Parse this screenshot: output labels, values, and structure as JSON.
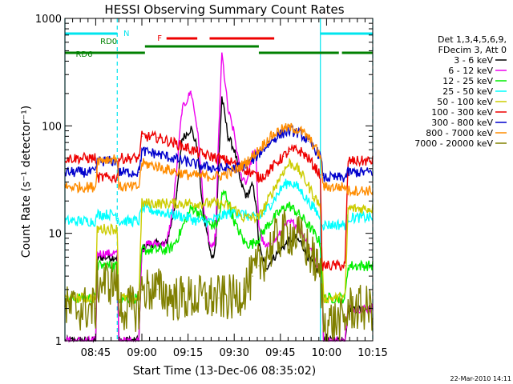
{
  "chart_data": {
    "type": "line",
    "title": "HESSI Observing Summary Count Rates",
    "xlabel": "Start Time (13-Dec-06 08:35:02)",
    "ylabel": "Count Rate (s⁻¹ detector⁻¹)",
    "x_unit": "minutes after 08:35:02",
    "xlim": [
      0,
      100
    ],
    "ylim": [
      1,
      1000
    ],
    "yscale": "log",
    "x_ticks": [
      {
        "label": "08:45",
        "t": 10
      },
      {
        "label": "09:00",
        "t": 25
      },
      {
        "label": "09:15",
        "t": 40
      },
      {
        "label": "09:30",
        "t": 55
      },
      {
        "label": "09:45",
        "t": 70
      },
      {
        "label": "10:00",
        "t": 85
      },
      {
        "label": "10:15",
        "t": 100
      }
    ],
    "y_ticks": [
      {
        "label": "1",
        "v": 1
      },
      {
        "label": "10",
        "v": 10
      },
      {
        "label": "100",
        "v": 100
      },
      {
        "label": "1000",
        "v": 1000
      }
    ],
    "legend": {
      "position": "right",
      "header": [
        "Det 1,3,4,5,6,9,",
        "FDecim 3, Att 0"
      ]
    },
    "flags": [
      {
        "name": "N",
        "color": "#00e5ee",
        "segments": [
          [
            0,
            17
          ],
          [
            83,
            100
          ]
        ]
      },
      {
        "name": "F",
        "color": "#ee0000",
        "segments": [
          [
            33,
            43
          ],
          [
            47,
            68
          ]
        ]
      },
      {
        "name": "RD0",
        "color": "#008000",
        "segments": [
          [
            26,
            63
          ]
        ]
      },
      {
        "name": "RD6",
        "color": "#008000",
        "segments": [
          [
            0,
            26
          ],
          [
            63,
            89
          ],
          [
            90,
            100
          ]
        ]
      }
    ],
    "vertical_lines": [
      {
        "t": 0,
        "style": "solid",
        "color": "#00e5ee"
      },
      {
        "t": 17,
        "style": "dashed",
        "color": "#00e5ee"
      },
      {
        "t": 83,
        "style": "solid",
        "color": "#00e5ee"
      },
      {
        "t": 100,
        "style": "dashed",
        "color": "#00e5ee"
      }
    ],
    "timestamp": "22-Mar-2010 14:11",
    "series": [
      {
        "name": "3 - 6 keV",
        "color": "#000000",
        "t": [
          0,
          10,
          10.5,
          16,
          17,
          17.5,
          24,
          25,
          27,
          30,
          33,
          35,
          36.5,
          38,
          41,
          43,
          44,
          45,
          46,
          46.5,
          47,
          48,
          49,
          50,
          51,
          53,
          55,
          56,
          57,
          59,
          61,
          62,
          63,
          64,
          65,
          66,
          67,
          68,
          69,
          70,
          71,
          72,
          73,
          74,
          75,
          76,
          77,
          78,
          79,
          80,
          81,
          82,
          83.5,
          84,
          91,
          92,
          100
        ],
        "v": [
          1,
          1,
          6,
          6,
          6,
          1,
          1,
          7,
          8,
          8,
          8,
          14,
          25,
          75,
          95,
          62,
          30,
          14,
          11,
          9,
          7,
          6,
          8,
          50,
          185,
          80,
          60,
          45,
          30,
          22,
          28,
          20,
          8,
          6,
          5,
          5,
          5.5,
          6,
          6.5,
          7,
          7.5,
          8,
          8.5,
          9,
          9,
          8.5,
          8,
          7,
          6,
          5.5,
          5,
          4.5,
          4.5,
          1,
          1,
          2,
          2
        ]
      },
      {
        "name": "6 - 12 keV",
        "color": "#ee00ee",
        "t": [
          0,
          10,
          10.5,
          16,
          17,
          17.5,
          24,
          25,
          27,
          30,
          33,
          35,
          36.5,
          38,
          41,
          43,
          44,
          45,
          46,
          46.5,
          47,
          48,
          49,
          50,
          51,
          53,
          55,
          56,
          57,
          59,
          61,
          62,
          63,
          64,
          65,
          66,
          67,
          68,
          69,
          70,
          71,
          72,
          73,
          74,
          75,
          76,
          77,
          78,
          79,
          80,
          81,
          82,
          83.5,
          84,
          91,
          92,
          100
        ],
        "v": [
          1,
          1,
          6.5,
          6.5,
          6.5,
          1,
          1,
          7,
          8,
          8,
          8,
          16,
          45,
          140,
          210,
          95,
          45,
          18,
          13,
          10,
          8,
          7,
          10,
          90,
          470,
          140,
          85,
          55,
          35,
          30,
          55,
          55,
          12,
          9,
          7.5,
          7.5,
          8,
          8.5,
          9,
          10,
          11,
          12,
          12.5,
          12.5,
          12,
          11,
          10,
          9,
          8,
          7,
          6,
          5,
          4.5,
          1,
          1,
          2,
          2
        ]
      },
      {
        "name": "12 - 25 keV",
        "color": "#00ee00",
        "t": [
          0,
          10,
          10.5,
          17,
          17.5,
          24,
          25,
          30,
          33,
          35,
          36,
          37,
          38,
          39,
          40,
          41,
          42,
          43,
          44,
          45,
          46,
          47,
          48,
          49,
          50,
          51,
          52,
          53,
          54,
          55,
          56,
          57,
          58,
          59,
          60,
          61,
          62,
          63,
          64,
          65,
          66,
          67,
          68,
          69,
          70,
          71,
          72,
          73,
          74,
          75,
          76,
          77,
          78,
          79,
          80,
          81,
          82,
          83,
          84,
          91,
          92,
          100
        ],
        "v": [
          2.5,
          2.5,
          5,
          5,
          2.5,
          2.5,
          7,
          7,
          7,
          7.5,
          8.5,
          9.5,
          11,
          13,
          15,
          17,
          17,
          16,
          15,
          14,
          13,
          12,
          12,
          12,
          13,
          22,
          24,
          20,
          16,
          13,
          11,
          10,
          8.5,
          8,
          8,
          8,
          8.5,
          9,
          10,
          11,
          12,
          13,
          14,
          15,
          16,
          17,
          18,
          18,
          17,
          16,
          15,
          14,
          13,
          12,
          11,
          10,
          9,
          8,
          2.5,
          2.5,
          5,
          5
        ]
      },
      {
        "name": "25 - 50 keV",
        "color": "#00ffff",
        "t": [
          0,
          10,
          10.5,
          17,
          17.5,
          24,
          25,
          30,
          35,
          40,
          43,
          45,
          47,
          50,
          52,
          55,
          58,
          61,
          63,
          65,
          67,
          69,
          71,
          73,
          75,
          77,
          79,
          81,
          83,
          84,
          91,
          92,
          100
        ],
        "v": [
          13,
          13,
          15,
          15,
          13,
          13,
          17,
          16,
          15,
          14,
          13,
          13,
          13,
          14,
          15,
          16,
          15,
          14,
          14,
          16,
          19,
          23,
          28,
          30,
          28,
          24,
          20,
          17,
          14,
          12,
          12,
          14,
          14
        ]
      },
      {
        "name": "50 - 100 keV",
        "color": "#cccc00",
        "t": [
          0,
          10,
          10.5,
          17,
          17.5,
          24,
          25,
          30,
          35,
          40,
          45,
          50,
          55,
          58,
          61,
          63,
          65,
          67,
          69,
          71,
          73,
          75,
          77,
          79,
          81,
          83,
          84,
          91,
          92,
          100
        ],
        "v": [
          2.5,
          2.5,
          11,
          11,
          2.5,
          2.5,
          19,
          19,
          19,
          19,
          19,
          19,
          17,
          14,
          14,
          14,
          18,
          23,
          30,
          38,
          45,
          42,
          35,
          28,
          22,
          18,
          2.5,
          2.5,
          17,
          17
        ]
      },
      {
        "name": "100 - 300 keV",
        "color": "#ee0000",
        "t": [
          0,
          10,
          10.5,
          17,
          17.5,
          24,
          25,
          30,
          35,
          40,
          45,
          50,
          55,
          58,
          61,
          63,
          65,
          67,
          69,
          71,
          73,
          75,
          77,
          79,
          81,
          83,
          83.5,
          84,
          91,
          92,
          100
        ],
        "v": [
          50,
          50,
          33,
          33,
          50,
          50,
          80,
          78,
          70,
          62,
          54,
          50,
          45,
          40,
          36,
          33,
          35,
          40,
          46,
          52,
          58,
          60,
          57,
          50,
          42,
          35,
          5,
          5,
          5,
          47,
          47
        ]
      },
      {
        "name": "300 - 800 keV",
        "color": "#0000cc",
        "t": [
          0,
          10,
          10.5,
          17,
          17.5,
          24,
          25,
          30,
          35,
          40,
          45,
          50,
          55,
          58,
          61,
          63,
          65,
          67,
          69,
          71,
          73,
          75,
          77,
          79,
          81,
          83,
          84,
          91,
          92,
          100
        ],
        "v": [
          37,
          37,
          47,
          47,
          37,
          37,
          58,
          55,
          50,
          46,
          42,
          40,
          40,
          43,
          48,
          55,
          63,
          72,
          80,
          86,
          90,
          88,
          82,
          72,
          62,
          52,
          33,
          33,
          37,
          37
        ]
      },
      {
        "name": "800 - 7000 keV",
        "color": "#ff8c00",
        "t": [
          0,
          10,
          10.5,
          17,
          17.5,
          24,
          25,
          30,
          35,
          40,
          45,
          50,
          55,
          58,
          61,
          63,
          65,
          67,
          69,
          71,
          73,
          75,
          77,
          79,
          81,
          83,
          84,
          91,
          92,
          100
        ],
        "v": [
          27,
          27,
          48,
          50,
          27,
          27,
          45,
          42,
          38,
          35,
          34,
          34,
          38,
          44,
          52,
          60,
          70,
          80,
          88,
          94,
          96,
          94,
          88,
          78,
          65,
          52,
          27,
          27,
          25,
          25
        ]
      },
      {
        "name": "7000 - 20000 keV",
        "color": "#808000",
        "t": [
          0,
          10,
          10.5,
          17,
          17.5,
          24,
          25,
          30,
          35,
          40,
          45,
          50,
          55,
          58,
          61,
          63,
          65,
          67,
          69,
          71,
          73,
          75,
          77,
          79,
          81,
          83,
          84,
          91,
          92,
          100
        ],
        "v": [
          2,
          2,
          3.5,
          3.5,
          2,
          2,
          3,
          3,
          2.5,
          2.5,
          2.5,
          2.5,
          2.5,
          3,
          4,
          5,
          6,
          7.5,
          9,
          10,
          10,
          9.5,
          8.5,
          7,
          5.5,
          4,
          1.5,
          1.5,
          2,
          2
        ]
      }
    ]
  }
}
